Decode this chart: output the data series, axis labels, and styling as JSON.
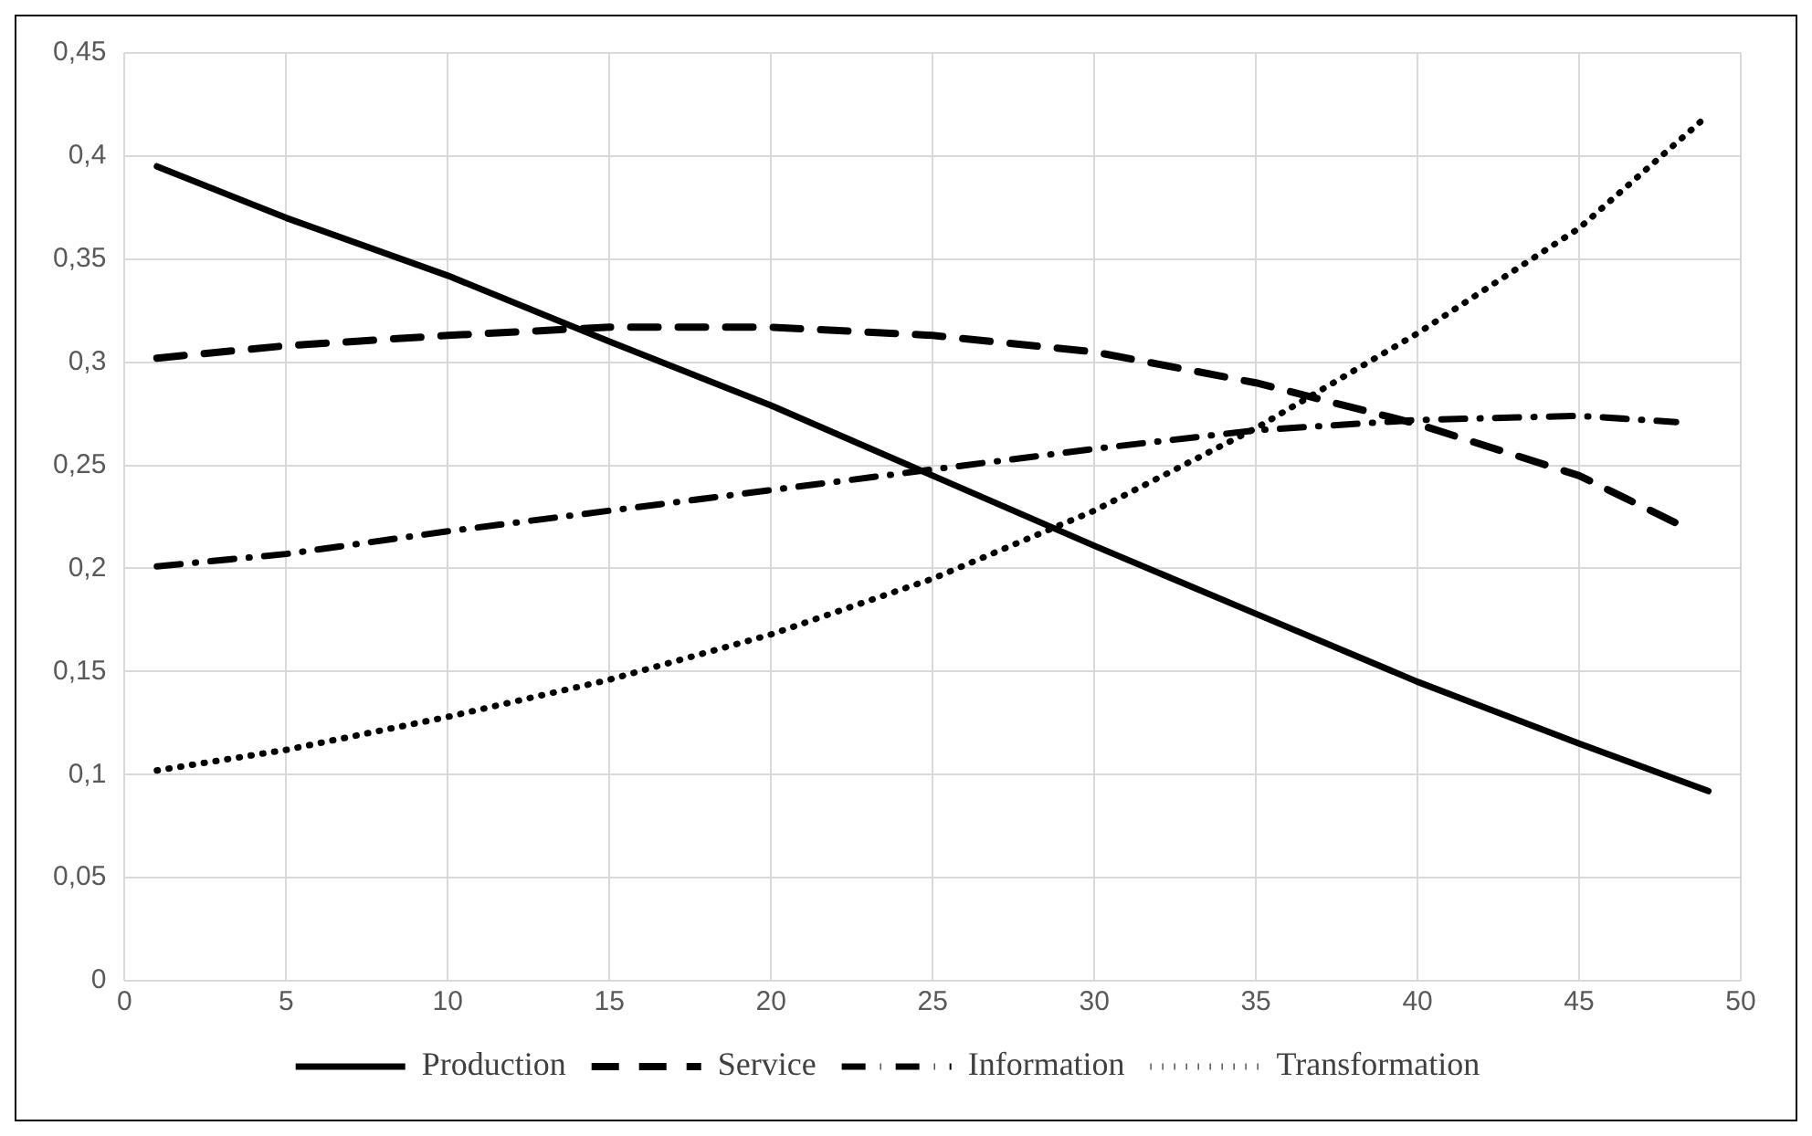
{
  "chart_data": {
    "type": "line",
    "x": [
      1,
      5,
      10,
      15,
      20,
      25,
      30,
      35,
      40,
      45,
      49
    ],
    "series": [
      {
        "name": "Production",
        "color": "#000000",
        "line_style": "solid",
        "values": [
          0.395,
          0.37,
          0.342,
          0.31,
          0.279,
          0.245,
          0.211,
          0.178,
          0.145,
          0.115,
          0.092
        ]
      },
      {
        "name": "Service",
        "color": "#000000",
        "line_style": "dashed",
        "x": [
          1,
          5,
          10,
          15,
          20,
          25,
          30,
          35,
          40,
          45,
          48
        ],
        "values": [
          0.302,
          0.308,
          0.313,
          0.317,
          0.317,
          0.313,
          0.305,
          0.29,
          0.27,
          0.245,
          0.222
        ]
      },
      {
        "name": "Information",
        "color": "#000000",
        "line_style": "dashdot",
        "x": [
          1,
          5,
          10,
          15,
          20,
          25,
          30,
          35,
          40,
          45,
          48
        ],
        "values": [
          0.201,
          0.207,
          0.218,
          0.228,
          0.238,
          0.248,
          0.258,
          0.267,
          0.272,
          0.274,
          0.271
        ]
      },
      {
        "name": "Transformation",
        "color": "#000000",
        "line_style": "dotted",
        "values": [
          0.102,
          0.112,
          0.128,
          0.146,
          0.168,
          0.195,
          0.228,
          0.268,
          0.314,
          0.365,
          0.42
        ]
      }
    ],
    "xlim": [
      0,
      50
    ],
    "xticks": [
      0,
      5,
      10,
      15,
      20,
      25,
      30,
      35,
      40,
      45,
      50
    ],
    "ylim": [
      0,
      0.45
    ],
    "yticks": [
      {
        "value": 0,
        "label": "0"
      },
      {
        "value": 0.05,
        "label": "0,05"
      },
      {
        "value": 0.1,
        "label": "0,1"
      },
      {
        "value": 0.15,
        "label": "0,15"
      },
      {
        "value": 0.2,
        "label": "0,2"
      },
      {
        "value": 0.25,
        "label": "0,25"
      },
      {
        "value": 0.3,
        "label": "0,3"
      },
      {
        "value": 0.35,
        "label": "0,35"
      },
      {
        "value": 0.4,
        "label": "0,4"
      },
      {
        "value": 0.45,
        "label": "0,45"
      }
    ],
    "grid": true,
    "legend": "bottom",
    "marker": "none"
  }
}
